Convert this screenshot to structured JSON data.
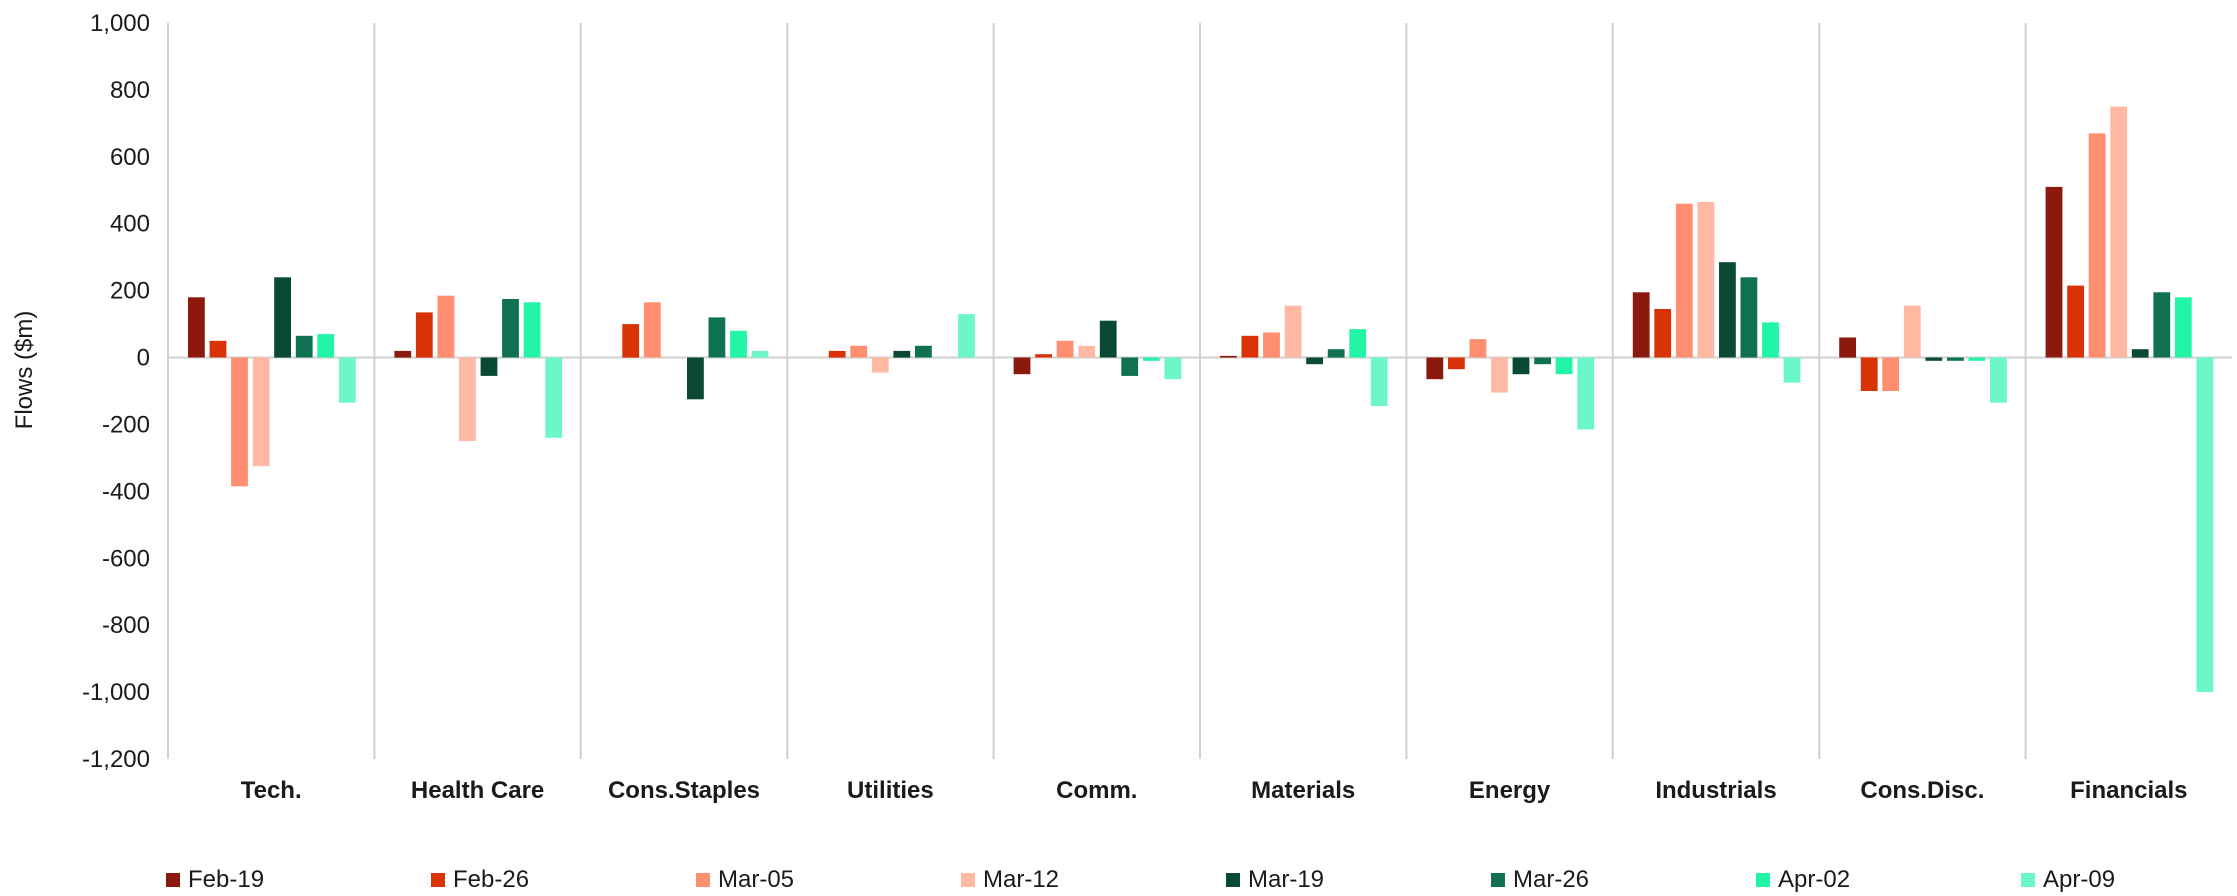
{
  "chart_data": {
    "type": "bar",
    "ylabel": "Flows ($m)",
    "ylim": [
      -1200,
      1000
    ],
    "yticks": [
      1000,
      800,
      600,
      400,
      200,
      0,
      -200,
      -400,
      -600,
      -800,
      -1000,
      -1200
    ],
    "ytick_labels": [
      "1,000",
      "800",
      "600",
      "400",
      "200",
      "0",
      "-200",
      "-400",
      "-600",
      "-800",
      "-1,000",
      "-1,200"
    ],
    "categories": [
      "Tech.",
      "Health Care",
      "Cons.Staples",
      "Utilities",
      "Comm.",
      "Materials",
      "Energy",
      "Industrials",
      "Cons.Disc.",
      "Financials"
    ],
    "legend_position": "bottom",
    "grid": false,
    "series": [
      {
        "name": "Feb-19",
        "color": "#8B1A0C",
        "values": [
          180,
          20,
          0,
          0,
          -50,
          5,
          -65,
          195,
          60,
          510
        ]
      },
      {
        "name": "Feb-26",
        "color": "#D93206",
        "values": [
          50,
          135,
          100,
          20,
          10,
          65,
          -35,
          145,
          -100,
          215
        ]
      },
      {
        "name": "Mar-05",
        "color": "#FF8F70",
        "values": [
          -385,
          185,
          165,
          35,
          50,
          75,
          55,
          460,
          -100,
          670
        ]
      },
      {
        "name": "Mar-12",
        "color": "#FFB9A3",
        "values": [
          -325,
          -250,
          0,
          -45,
          35,
          155,
          -105,
          465,
          155,
          750
        ]
      },
      {
        "name": "Mar-19",
        "color": "#0B4A32",
        "values": [
          240,
          -55,
          -125,
          20,
          110,
          -20,
          -50,
          285,
          -10,
          25
        ]
      },
      {
        "name": "Mar-26",
        "color": "#0F7152",
        "values": [
          65,
          175,
          120,
          35,
          -55,
          25,
          -20,
          240,
          -10,
          195
        ]
      },
      {
        "name": "Apr-02",
        "color": "#23F5A6",
        "values": [
          70,
          165,
          80,
          0,
          -10,
          85,
          -50,
          105,
          -10,
          180
        ]
      },
      {
        "name": "Apr-09",
        "color": "#6DF7C9",
        "values": [
          -135,
          -240,
          20,
          130,
          -65,
          -145,
          -215,
          -75,
          -135,
          -1000
        ]
      }
    ]
  }
}
